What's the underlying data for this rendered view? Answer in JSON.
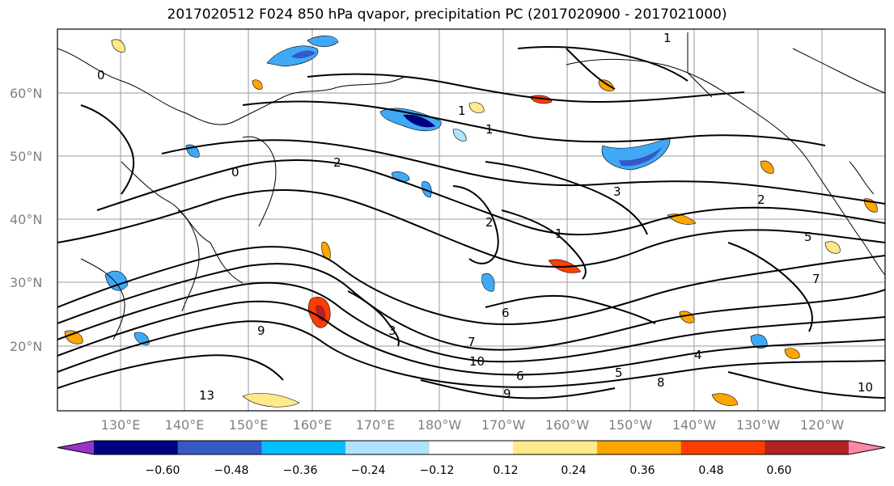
{
  "title": "2017020512 F024 850 hPa qvapor, precipitation PC (2017020900 - 2017021000)",
  "map": {
    "lat_labels": [
      "60°N",
      "50°N",
      "40°N",
      "30°N",
      "20°N"
    ],
    "lon_labels": [
      "130°E",
      "140°E",
      "150°E",
      "160°E",
      "170°E",
      "180°W",
      "170°W",
      "160°W",
      "150°W",
      "140°W",
      "130°W",
      "120°W"
    ],
    "contour_labels": [
      "1",
      "1",
      "1",
      "2",
      "2",
      "3",
      "3",
      "1",
      "6",
      "7",
      "6",
      "9",
      "10",
      "8",
      "13",
      "5",
      "4",
      "10",
      "9",
      "0",
      "0",
      "5",
      "7",
      "2"
    ]
  },
  "colorbar": {
    "colors": [
      "#9932cc",
      "#000080",
      "#3559c6",
      "#00bfff",
      "#b0e2ff",
      "#ffffff",
      "#ffe98a",
      "#ffa500",
      "#ff3d00",
      "#b22222",
      "#ff88aa"
    ],
    "labels": [
      "−0.60",
      "−0.48",
      "−0.36",
      "−0.24",
      "−0.12",
      "0.12",
      "0.24",
      "0.36",
      "0.48",
      "0.60"
    ]
  }
}
